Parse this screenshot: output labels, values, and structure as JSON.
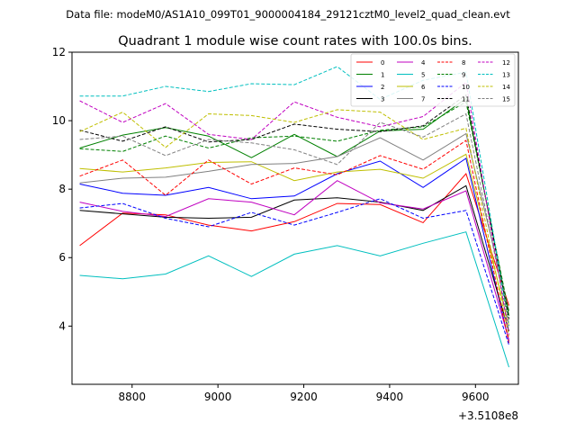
{
  "suptitle": "Data file: modeM0/AS1A10_099T01_9000004184_29121cztM0_level2_quad_clean.evt",
  "colors": {
    "0": "#ff0000",
    "1": "#008000",
    "2": "#0000ff",
    "3": "#000000",
    "4": "#c000c0",
    "5": "#00bfbf",
    "6": "#bfbf00",
    "7": "#808080",
    "8": "#ff0000",
    "9": "#008000",
    "10": "#0000ff",
    "11": "#000000",
    "12": "#c000c0",
    "13": "#00bfbf",
    "14": "#bfbf00",
    "15": "#808080"
  },
  "chart_data": {
    "type": "line",
    "title": "Quadrant 1 module wise count rates with 100.0s bins.",
    "xlabel": "",
    "ylabel": "",
    "x_offset_label": "+3.5108e8",
    "xlim": [
      8660,
      9700
    ],
    "ylim": [
      2.3,
      12
    ],
    "xticks": [
      8800,
      9000,
      9200,
      9400,
      9600
    ],
    "yticks": [
      4,
      6,
      8,
      10,
      12
    ],
    "legend_position": "top-right",
    "legend_columns": 4,
    "x": [
      8678,
      8778,
      8878,
      8978,
      9078,
      9178,
      9278,
      9378,
      9478,
      9578,
      9678
    ],
    "series": [
      {
        "name": "0",
        "style": "solid",
        "values": [
          6.35,
          7.3,
          7.25,
          6.95,
          6.78,
          7.05,
          7.58,
          7.55,
          7.02,
          8.45,
          4.6
        ]
      },
      {
        "name": "1",
        "style": "solid",
        "values": [
          9.2,
          9.58,
          9.8,
          9.55,
          8.92,
          9.6,
          8.95,
          9.7,
          9.75,
          10.65,
          4.3
        ]
      },
      {
        "name": "2",
        "style": "solid",
        "values": [
          8.15,
          7.88,
          7.82,
          8.05,
          7.72,
          7.8,
          8.45,
          8.82,
          8.05,
          8.9,
          3.55
        ]
      },
      {
        "name": "3",
        "style": "solid",
        "values": [
          7.38,
          7.28,
          7.18,
          7.15,
          7.18,
          7.68,
          7.75,
          7.62,
          7.38,
          8.1,
          3.85
        ]
      },
      {
        "name": "4",
        "style": "solid",
        "values": [
          7.62,
          7.35,
          7.2,
          7.72,
          7.62,
          7.25,
          8.25,
          7.6,
          7.42,
          7.95,
          3.6
        ]
      },
      {
        "name": "5",
        "style": "solid",
        "values": [
          5.48,
          5.38,
          5.52,
          6.05,
          5.45,
          6.1,
          6.35,
          6.05,
          6.42,
          6.75,
          2.8
        ]
      },
      {
        "name": "6",
        "style": "solid",
        "values": [
          8.6,
          8.5,
          8.62,
          8.78,
          8.8,
          8.25,
          8.5,
          8.58,
          8.32,
          9.02,
          4.0
        ]
      },
      {
        "name": "7",
        "style": "solid",
        "values": [
          8.18,
          8.32,
          8.35,
          8.52,
          8.72,
          8.75,
          8.95,
          9.5,
          8.85,
          9.62,
          4.45
        ]
      },
      {
        "name": "8",
        "style": "dashed",
        "values": [
          8.38,
          8.85,
          7.82,
          8.85,
          8.15,
          8.62,
          8.42,
          8.98,
          8.58,
          9.42,
          3.5
        ]
      },
      {
        "name": "9",
        "style": "dashed",
        "values": [
          9.18,
          9.1,
          9.55,
          9.2,
          9.5,
          9.55,
          9.4,
          9.72,
          9.82,
          10.55,
          4.4
        ]
      },
      {
        "name": "10",
        "style": "dashed",
        "values": [
          7.45,
          7.58,
          7.15,
          6.9,
          7.32,
          6.95,
          7.32,
          7.72,
          7.15,
          7.38,
          3.45
        ]
      },
      {
        "name": "11",
        "style": "dashed",
        "values": [
          9.72,
          9.4,
          9.82,
          9.38,
          9.45,
          9.9,
          9.75,
          9.68,
          9.85,
          10.75,
          4.2
        ]
      },
      {
        "name": "12",
        "style": "dashed",
        "values": [
          10.58,
          9.95,
          10.5,
          9.6,
          9.45,
          10.55,
          10.1,
          9.82,
          10.12,
          11.12,
          3.75
        ]
      },
      {
        "name": "13",
        "style": "dashed",
        "values": [
          10.72,
          10.72,
          11.0,
          10.85,
          11.08,
          11.05,
          11.58,
          10.62,
          11.18,
          11.42,
          4.0
        ]
      },
      {
        "name": "14",
        "style": "dashed",
        "values": [
          9.68,
          10.25,
          9.22,
          10.2,
          10.15,
          9.95,
          10.32,
          10.25,
          9.45,
          9.78,
          3.7
        ]
      },
      {
        "name": "15",
        "style": "dashed",
        "values": [
          9.45,
          9.55,
          8.98,
          9.45,
          9.35,
          9.15,
          8.72,
          9.95,
          9.52,
          10.2,
          4.05
        ]
      }
    ]
  }
}
